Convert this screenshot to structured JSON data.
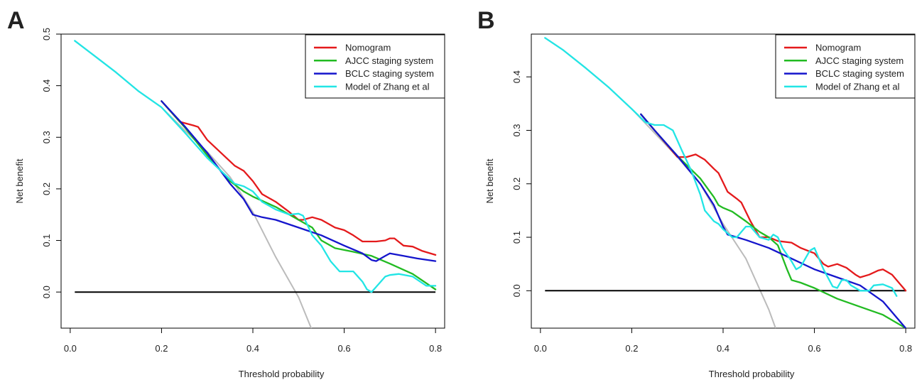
{
  "chart_data": [
    {
      "type": "line",
      "panel": "A",
      "xlabel": "Threshold probability",
      "ylabel": "Net benefit",
      "xlim": [
        -0.02,
        0.82
      ],
      "ylim": [
        -0.07,
        0.5
      ],
      "xticks": [
        "0.0",
        "0.2",
        "0.4",
        "0.6",
        "0.8"
      ],
      "xtick_values": [
        0,
        0.2,
        0.4,
        0.6,
        0.8
      ],
      "yticks": [
        "0.0",
        "0.1",
        "0.2",
        "0.3",
        "0.4",
        "0.5"
      ],
      "ytick_values": [
        0,
        0.1,
        0.2,
        0.3,
        0.4,
        0.5
      ],
      "legend_position": "top-right",
      "treat_all": {
        "color": "#bbbbbb",
        "x": [
          0.01,
          0.05,
          0.1,
          0.15,
          0.2,
          0.25,
          0.3,
          0.35,
          0.4,
          0.45,
          0.5,
          0.53
        ],
        "y": [
          0.487,
          0.46,
          0.426,
          0.389,
          0.358,
          0.314,
          0.272,
          0.223,
          0.155,
          0.068,
          -0.01,
          -0.075
        ]
      },
      "treat_none": {
        "color": "#000000",
        "x": [
          0.01,
          0.8
        ],
        "y": [
          0,
          0
        ]
      },
      "series": [
        {
          "name": "Nomogram",
          "color": "#e41a1c",
          "x": [
            0.2,
            0.24,
            0.27,
            0.28,
            0.3,
            0.33,
            0.36,
            0.38,
            0.4,
            0.42,
            0.45,
            0.48,
            0.5,
            0.51,
            0.53,
            0.55,
            0.58,
            0.6,
            0.62,
            0.64,
            0.67,
            0.69,
            0.7,
            0.71,
            0.73,
            0.75,
            0.77,
            0.8
          ],
          "y": [
            0.37,
            0.33,
            0.323,
            0.32,
            0.295,
            0.27,
            0.245,
            0.235,
            0.215,
            0.19,
            0.175,
            0.155,
            0.14,
            0.14,
            0.145,
            0.14,
            0.125,
            0.12,
            0.11,
            0.098,
            0.098,
            0.1,
            0.104,
            0.104,
            0.09,
            0.088,
            0.08,
            0.072
          ]
        },
        {
          "name": "AJCC staging system",
          "color": "#22bb22",
          "x": [
            0.2,
            0.25,
            0.3,
            0.35,
            0.38,
            0.4,
            0.45,
            0.5,
            0.53,
            0.55,
            0.58,
            0.62,
            0.66,
            0.7,
            0.75,
            0.8
          ],
          "y": [
            0.37,
            0.32,
            0.265,
            0.215,
            0.195,
            0.185,
            0.165,
            0.14,
            0.125,
            0.1,
            0.085,
            0.078,
            0.07,
            0.055,
            0.035,
            0.005
          ]
        },
        {
          "name": "BCLC staging system",
          "color": "#1515cc",
          "x": [
            0.2,
            0.25,
            0.3,
            0.35,
            0.38,
            0.4,
            0.42,
            0.45,
            0.5,
            0.55,
            0.6,
            0.64,
            0.66,
            0.67,
            0.69,
            0.7,
            0.73,
            0.76,
            0.8
          ],
          "y": [
            0.37,
            0.322,
            0.27,
            0.21,
            0.18,
            0.15,
            0.145,
            0.14,
            0.125,
            0.11,
            0.09,
            0.075,
            0.062,
            0.06,
            0.07,
            0.075,
            0.07,
            0.065,
            0.06
          ]
        },
        {
          "name": "Model of Zhang et al",
          "color": "#22e5e5",
          "x": [
            0.01,
            0.05,
            0.1,
            0.15,
            0.2,
            0.25,
            0.28,
            0.3,
            0.33,
            0.36,
            0.38,
            0.4,
            0.42,
            0.45,
            0.48,
            0.5,
            0.51,
            0.53,
            0.55,
            0.57,
            0.59,
            0.6,
            0.62,
            0.64,
            0.65,
            0.66,
            0.67,
            0.69,
            0.7,
            0.72,
            0.75,
            0.78,
            0.8
          ],
          "y": [
            0.487,
            0.46,
            0.426,
            0.389,
            0.358,
            0.31,
            0.28,
            0.26,
            0.235,
            0.21,
            0.205,
            0.195,
            0.175,
            0.16,
            0.15,
            0.152,
            0.148,
            0.11,
            0.09,
            0.06,
            0.04,
            0.04,
            0.04,
            0.02,
            0.005,
            0.0,
            0.01,
            0.03,
            0.033,
            0.035,
            0.03,
            0.012,
            0.012
          ]
        }
      ]
    },
    {
      "type": "line",
      "panel": "B",
      "xlabel": "Threshold probability",
      "ylabel": "Net benefit",
      "xlim": [
        -0.02,
        0.82
      ],
      "ylim": [
        -0.07,
        0.48
      ],
      "xticks": [
        "0.0",
        "0.2",
        "0.4",
        "0.6",
        "0.8"
      ],
      "xtick_values": [
        0,
        0.2,
        0.4,
        0.6,
        0.8
      ],
      "yticks": [
        "0.0",
        "0.1",
        "0.2",
        "0.3",
        "0.4"
      ],
      "ytick_values": [
        0,
        0.1,
        0.2,
        0.3,
        0.4
      ],
      "legend_position": "top-right",
      "treat_all": {
        "color": "#bbbbbb",
        "x": [
          0.01,
          0.05,
          0.1,
          0.15,
          0.2,
          0.25,
          0.3,
          0.35,
          0.4,
          0.45,
          0.5,
          0.515
        ],
        "y": [
          0.473,
          0.45,
          0.416,
          0.38,
          0.34,
          0.295,
          0.25,
          0.2,
          0.125,
          0.06,
          -0.035,
          -0.07
        ]
      },
      "treat_none": {
        "color": "#000000",
        "x": [
          0.01,
          0.8
        ],
        "y": [
          0,
          0
        ]
      },
      "series": [
        {
          "name": "Nomogram",
          "color": "#e41a1c",
          "x": [
            0.22,
            0.25,
            0.28,
            0.3,
            0.32,
            0.34,
            0.36,
            0.38,
            0.39,
            0.41,
            0.43,
            0.44,
            0.46,
            0.48,
            0.5,
            0.52,
            0.55,
            0.57,
            0.6,
            0.62,
            0.63,
            0.65,
            0.67,
            0.69,
            0.7,
            0.72,
            0.74,
            0.75,
            0.77,
            0.8
          ],
          "y": [
            0.33,
            0.3,
            0.27,
            0.25,
            0.25,
            0.255,
            0.245,
            0.228,
            0.22,
            0.185,
            0.172,
            0.165,
            0.13,
            0.1,
            0.1,
            0.093,
            0.09,
            0.08,
            0.07,
            0.05,
            0.045,
            0.05,
            0.043,
            0.03,
            0.025,
            0.03,
            0.038,
            0.04,
            0.03,
            0.0
          ]
        },
        {
          "name": "AJCC staging system",
          "color": "#22bb22",
          "x": [
            0.22,
            0.25,
            0.3,
            0.35,
            0.38,
            0.39,
            0.4,
            0.42,
            0.45,
            0.48,
            0.5,
            0.52,
            0.54,
            0.55,
            0.57,
            0.6,
            0.65,
            0.7,
            0.75,
            0.8
          ],
          "y": [
            0.33,
            0.3,
            0.252,
            0.21,
            0.175,
            0.16,
            0.155,
            0.148,
            0.13,
            0.11,
            0.1,
            0.085,
            0.04,
            0.02,
            0.015,
            0.005,
            -0.015,
            -0.03,
            -0.045,
            -0.07
          ]
        },
        {
          "name": "BCLC staging system",
          "color": "#1515cc",
          "x": [
            0.22,
            0.25,
            0.3,
            0.35,
            0.38,
            0.4,
            0.41,
            0.43,
            0.45,
            0.5,
            0.55,
            0.6,
            0.65,
            0.7,
            0.75,
            0.8
          ],
          "y": [
            0.33,
            0.3,
            0.252,
            0.2,
            0.16,
            0.12,
            0.105,
            0.1,
            0.095,
            0.08,
            0.06,
            0.04,
            0.025,
            0.01,
            -0.02,
            -0.07
          ]
        },
        {
          "name": "Model of Zhang et al",
          "color": "#22e5e5",
          "x": [
            0.01,
            0.05,
            0.1,
            0.15,
            0.2,
            0.23,
            0.25,
            0.27,
            0.29,
            0.31,
            0.33,
            0.35,
            0.36,
            0.37,
            0.38,
            0.39,
            0.4,
            0.42,
            0.43,
            0.45,
            0.46,
            0.48,
            0.5,
            0.51,
            0.52,
            0.53,
            0.55,
            0.56,
            0.57,
            0.59,
            0.6,
            0.61,
            0.62,
            0.64,
            0.65,
            0.66,
            0.67,
            0.68,
            0.7,
            0.72,
            0.73,
            0.75,
            0.77,
            0.78
          ],
          "y": [
            0.473,
            0.45,
            0.416,
            0.38,
            0.34,
            0.315,
            0.31,
            0.31,
            0.3,
            0.262,
            0.225,
            0.18,
            0.15,
            0.14,
            0.13,
            0.125,
            0.115,
            0.1,
            0.1,
            0.12,
            0.12,
            0.1,
            0.095,
            0.105,
            0.1,
            0.08,
            0.055,
            0.04,
            0.045,
            0.075,
            0.08,
            0.06,
            0.04,
            0.008,
            0.005,
            0.02,
            0.02,
            0.01,
            0.0,
            0.0,
            0.01,
            0.012,
            0.005,
            -0.01
          ]
        }
      ]
    }
  ]
}
